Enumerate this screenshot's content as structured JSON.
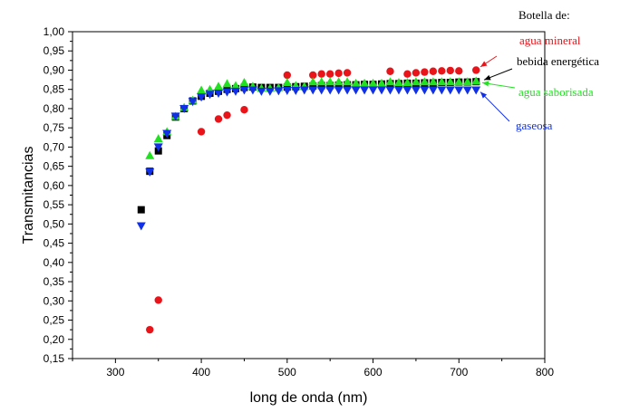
{
  "chart_data": {
    "type": "scatter",
    "xlabel": "long de onda (nm)",
    "ylabel": "Transmitancias",
    "xlim": [
      250,
      800
    ],
    "ylim": [
      0.15,
      1.0
    ],
    "xticks": [
      300,
      400,
      500,
      600,
      700,
      800
    ],
    "yticks": [
      0.15,
      0.2,
      0.25,
      0.3,
      0.35,
      0.4,
      0.45,
      0.5,
      0.55,
      0.6,
      0.65,
      0.7,
      0.75,
      0.8,
      0.85,
      0.9,
      0.95,
      1.0
    ],
    "xtick_labels": [
      "300",
      "400",
      "500",
      "600",
      "700",
      "800"
    ],
    "ytick_labels": [
      "0,15",
      "0,20",
      "0,25",
      "0,30",
      "0,35",
      "0,40",
      "0,45",
      "0,50",
      "0,55",
      "0,60",
      "0,65",
      "0,70",
      "0,75",
      "0,80",
      "0,85",
      "0,90",
      "0,95",
      "1,00"
    ],
    "grid": false,
    "legend_title": "Botella de:",
    "series": [
      {
        "name": "agua mineral",
        "color": "#e8141a",
        "marker": "circle",
        "points": [
          [
            340,
            0.225
          ],
          [
            350,
            0.302
          ],
          [
            400,
            0.74
          ],
          [
            420,
            0.773
          ],
          [
            430,
            0.783
          ],
          [
            450,
            0.797
          ],
          [
            500,
            0.887
          ],
          [
            530,
            0.887
          ],
          [
            540,
            0.89
          ],
          [
            550,
            0.89
          ],
          [
            560,
            0.892
          ],
          [
            570,
            0.893
          ],
          [
            620,
            0.897
          ],
          [
            640,
            0.89
          ],
          [
            650,
            0.893
          ],
          [
            660,
            0.895
          ],
          [
            670,
            0.897
          ],
          [
            680,
            0.898
          ],
          [
            690,
            0.899
          ],
          [
            700,
            0.898
          ],
          [
            720,
            0.9
          ]
        ]
      },
      {
        "name": "bebida energética",
        "color": "#000000",
        "marker": "square",
        "points": [
          [
            330,
            0.537
          ],
          [
            340,
            0.637
          ],
          [
            350,
            0.69
          ],
          [
            360,
            0.73
          ],
          [
            370,
            0.778
          ],
          [
            380,
            0.8
          ],
          [
            390,
            0.82
          ],
          [
            400,
            0.832
          ],
          [
            410,
            0.84
          ],
          [
            420,
            0.845
          ],
          [
            430,
            0.85
          ],
          [
            440,
            0.852
          ],
          [
            450,
            0.855
          ],
          [
            460,
            0.856
          ],
          [
            470,
            0.855
          ],
          [
            480,
            0.855
          ],
          [
            490,
            0.855
          ],
          [
            500,
            0.856
          ],
          [
            510,
            0.857
          ],
          [
            520,
            0.858
          ],
          [
            530,
            0.859
          ],
          [
            540,
            0.86
          ],
          [
            550,
            0.86
          ],
          [
            560,
            0.861
          ],
          [
            570,
            0.862
          ],
          [
            580,
            0.862
          ],
          [
            590,
            0.863
          ],
          [
            600,
            0.863
          ],
          [
            610,
            0.864
          ],
          [
            620,
            0.865
          ],
          [
            630,
            0.865
          ],
          [
            640,
            0.866
          ],
          [
            650,
            0.866
          ],
          [
            660,
            0.867
          ],
          [
            670,
            0.867
          ],
          [
            680,
            0.868
          ],
          [
            690,
            0.868
          ],
          [
            700,
            0.869
          ],
          [
            710,
            0.869
          ],
          [
            720,
            0.87
          ]
        ]
      },
      {
        "name": "agua saborisada",
        "color": "#22e022",
        "marker": "triangle-up",
        "points": [
          [
            340,
            0.678
          ],
          [
            350,
            0.722
          ],
          [
            360,
            0.74
          ],
          [
            370,
            0.78
          ],
          [
            380,
            0.803
          ],
          [
            390,
            0.822
          ],
          [
            400,
            0.848
          ],
          [
            410,
            0.85
          ],
          [
            420,
            0.858
          ],
          [
            430,
            0.865
          ],
          [
            440,
            0.86
          ],
          [
            450,
            0.868
          ],
          [
            460,
            0.858
          ],
          [
            470,
            0.853
          ],
          [
            480,
            0.853
          ],
          [
            490,
            0.855
          ],
          [
            500,
            0.868
          ],
          [
            510,
            0.86
          ],
          [
            520,
            0.858
          ],
          [
            530,
            0.87
          ],
          [
            540,
            0.87
          ],
          [
            550,
            0.87
          ],
          [
            560,
            0.87
          ],
          [
            570,
            0.87
          ],
          [
            580,
            0.866
          ],
          [
            590,
            0.866
          ],
          [
            600,
            0.866
          ],
          [
            610,
            0.866
          ],
          [
            620,
            0.87
          ],
          [
            630,
            0.868
          ],
          [
            640,
            0.868
          ],
          [
            650,
            0.87
          ],
          [
            660,
            0.87
          ],
          [
            670,
            0.87
          ],
          [
            680,
            0.87
          ],
          [
            690,
            0.87
          ],
          [
            700,
            0.87
          ],
          [
            710,
            0.87
          ],
          [
            720,
            0.872
          ]
        ]
      },
      {
        "name": "gaseosa",
        "color": "#1030e8",
        "marker": "triangle-down",
        "points": [
          [
            330,
            0.495
          ],
          [
            340,
            0.635
          ],
          [
            350,
            0.7
          ],
          [
            360,
            0.735
          ],
          [
            370,
            0.78
          ],
          [
            380,
            0.8
          ],
          [
            390,
            0.818
          ],
          [
            400,
            0.83
          ],
          [
            410,
            0.837
          ],
          [
            420,
            0.84
          ],
          [
            430,
            0.843
          ],
          [
            440,
            0.845
          ],
          [
            450,
            0.848
          ],
          [
            460,
            0.848
          ],
          [
            470,
            0.845
          ],
          [
            480,
            0.845
          ],
          [
            490,
            0.846
          ],
          [
            500,
            0.847
          ],
          [
            510,
            0.847
          ],
          [
            520,
            0.848
          ],
          [
            530,
            0.848
          ],
          [
            540,
            0.848
          ],
          [
            550,
            0.848
          ],
          [
            560,
            0.848
          ],
          [
            570,
            0.848
          ],
          [
            580,
            0.848
          ],
          [
            590,
            0.848
          ],
          [
            600,
            0.848
          ],
          [
            610,
            0.848
          ],
          [
            620,
            0.848
          ],
          [
            630,
            0.848
          ],
          [
            640,
            0.848
          ],
          [
            650,
            0.848
          ],
          [
            660,
            0.848
          ],
          [
            670,
            0.848
          ],
          [
            680,
            0.848
          ],
          [
            690,
            0.848
          ],
          [
            700,
            0.848
          ],
          [
            710,
            0.848
          ],
          [
            720,
            0.848
          ]
        ]
      }
    ]
  }
}
